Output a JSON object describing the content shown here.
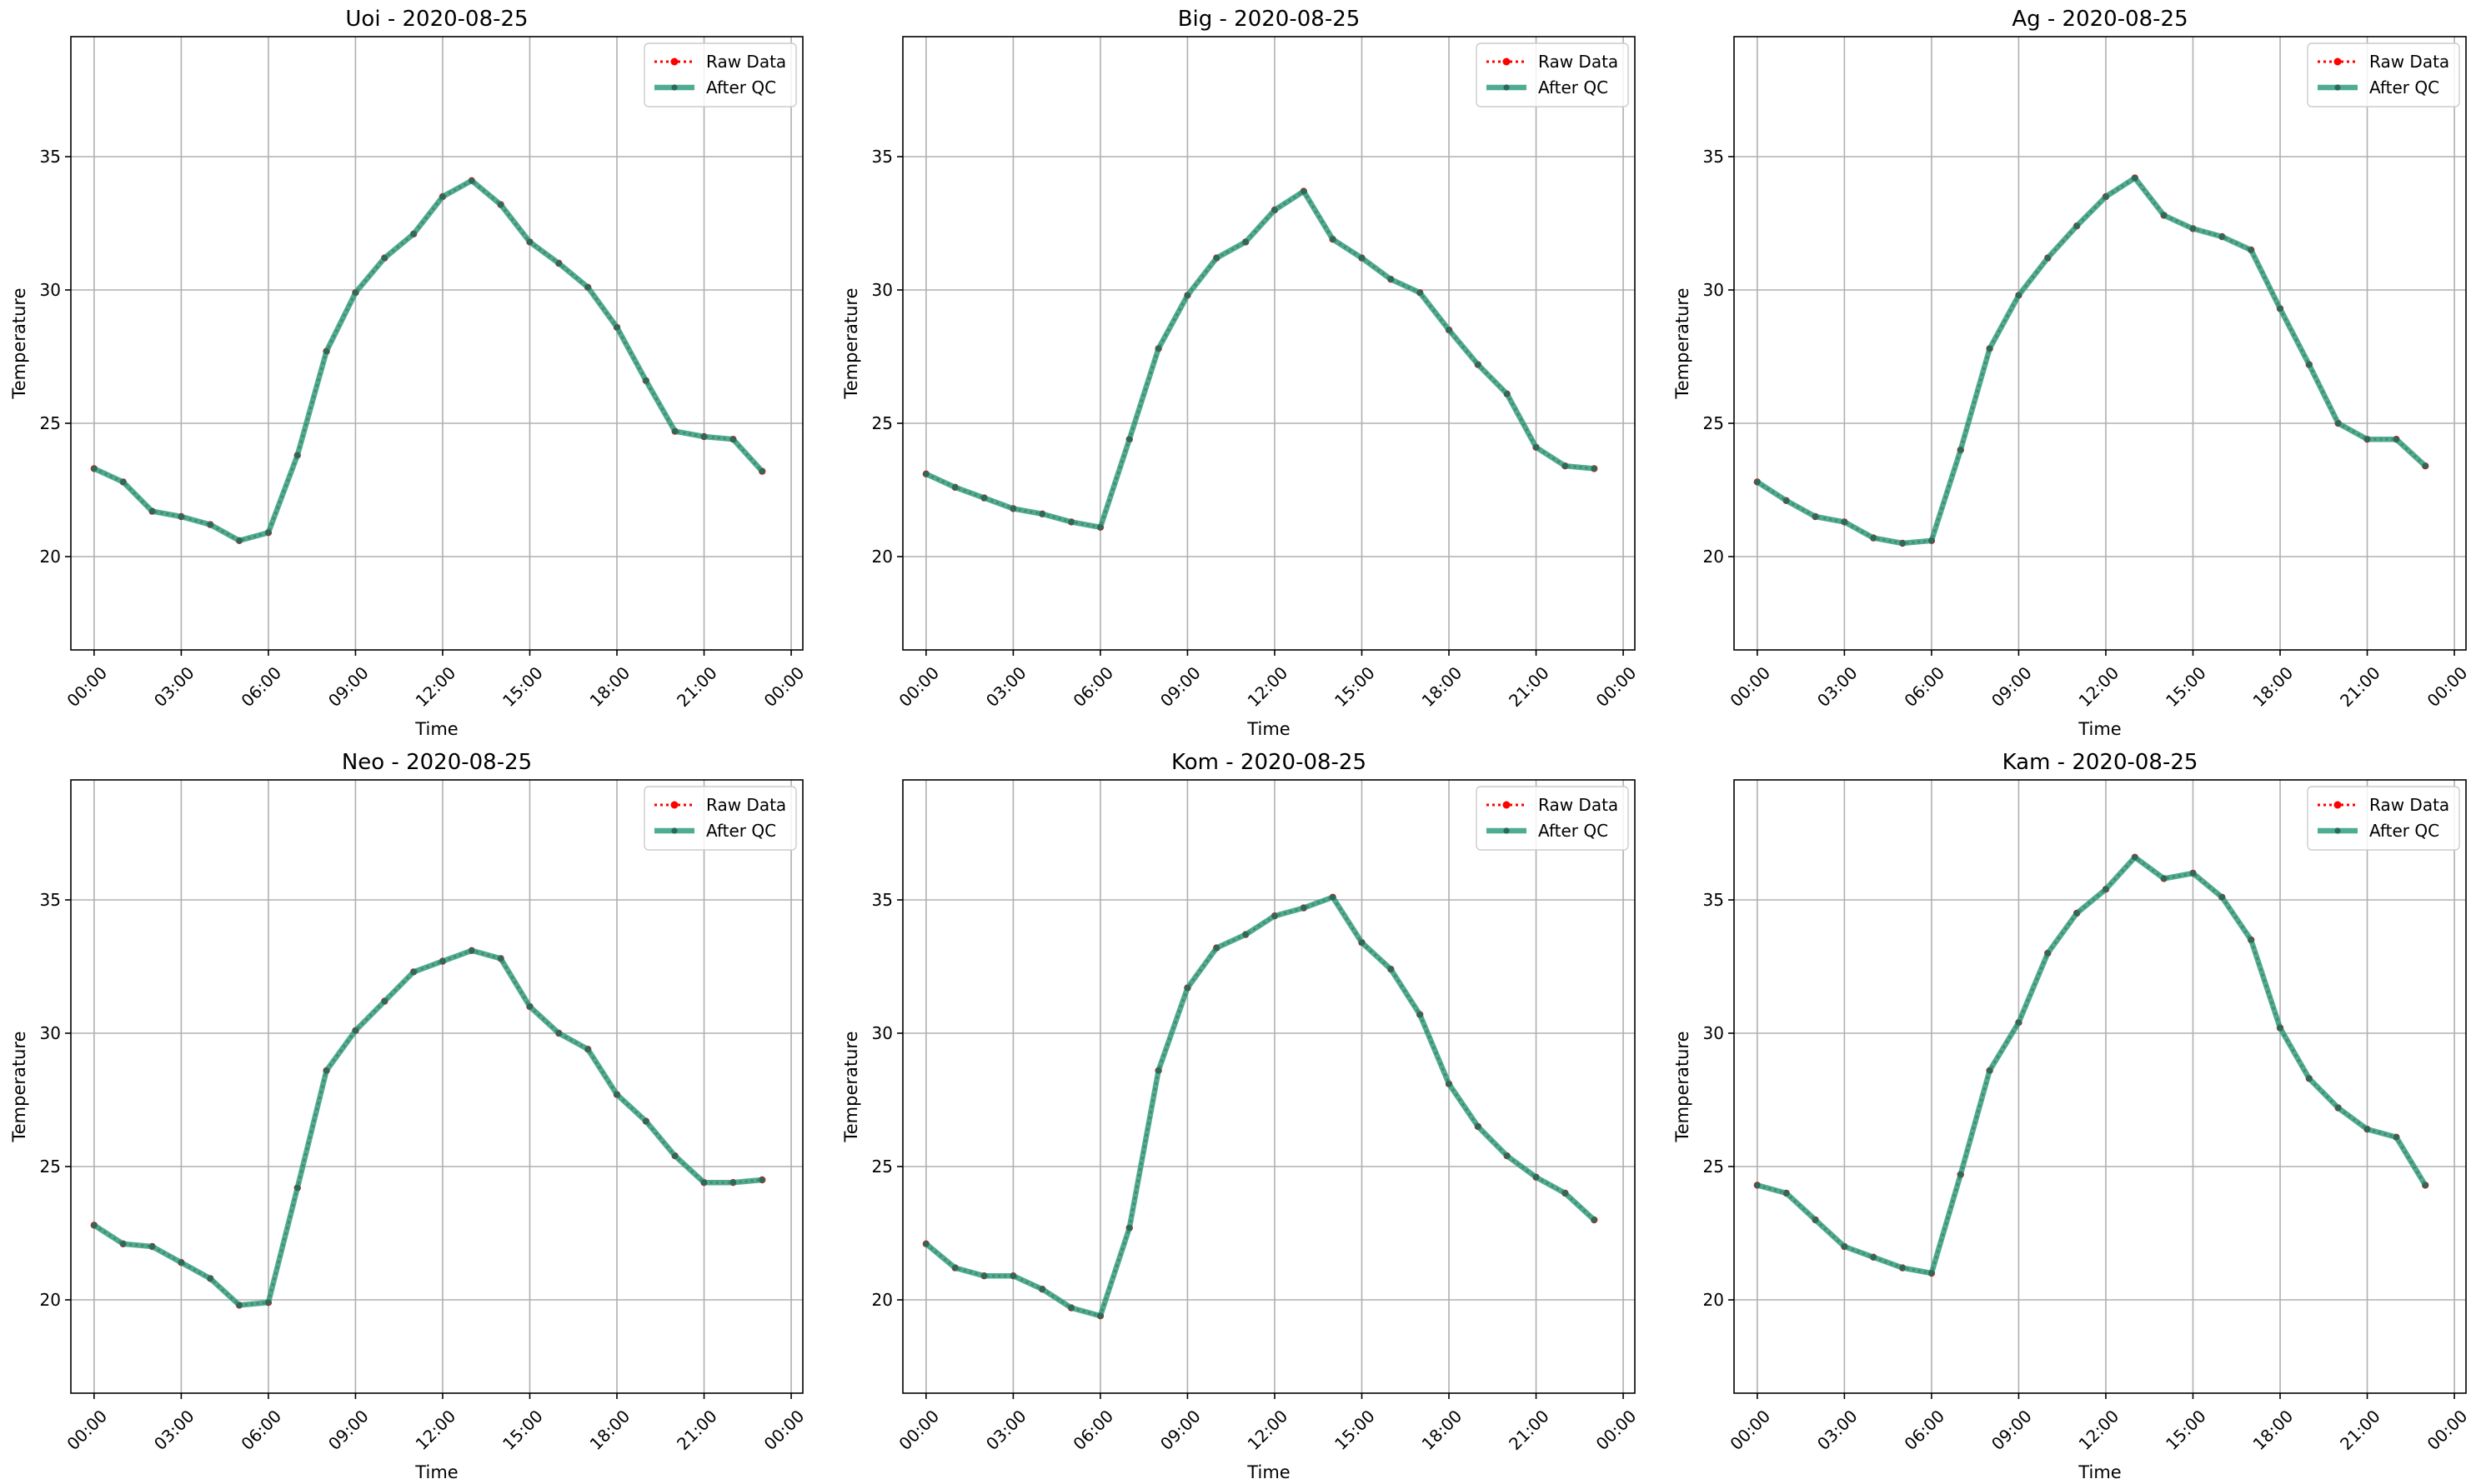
{
  "figure": {
    "rows": 2,
    "cols": 3,
    "colors": {
      "raw": "#ff0000",
      "qc": "#2e9e7e",
      "qc_marker": "#2a6a5a",
      "grid": "#b0b0b0",
      "axes": "#000000",
      "legend_border": "#cccccc"
    }
  },
  "chart_data": [
    {
      "type": "line",
      "title": "Uoi - 2020-08-25",
      "xlabel": "Time",
      "ylabel": "Temperature",
      "xlim": [
        -0.8,
        24.4
      ],
      "ylim": [
        16.5,
        39.5
      ],
      "xticks": [
        0,
        3,
        6,
        9,
        12,
        15,
        18,
        21,
        24
      ],
      "xtick_labels": [
        "00:00",
        "03:00",
        "06:00",
        "09:00",
        "12:00",
        "15:00",
        "18:00",
        "21:00",
        "00:00"
      ],
      "yticks": [
        20,
        25,
        30,
        35
      ],
      "ytick_labels": [
        "20",
        "25",
        "30",
        "35"
      ],
      "grid": true,
      "legend": "top-right",
      "x": [
        0,
        1,
        2,
        3,
        4,
        5,
        6,
        7,
        8,
        9,
        10,
        11,
        12,
        13,
        14,
        15,
        16,
        17,
        18,
        19,
        20,
        21,
        22,
        23
      ],
      "series": [
        {
          "name": "Raw Data",
          "style": "dotted-red",
          "values": [
            23.3,
            22.8,
            21.7,
            21.5,
            21.2,
            20.6,
            20.9,
            23.8,
            27.7,
            29.9,
            31.2,
            32.1,
            33.5,
            34.1,
            33.2,
            31.8,
            31.0,
            30.1,
            28.6,
            26.6,
            24.7,
            24.5,
            24.4,
            23.2
          ]
        },
        {
          "name": "After QC",
          "style": "solid-green",
          "values": [
            23.3,
            22.8,
            21.7,
            21.5,
            21.2,
            20.6,
            20.9,
            23.8,
            27.7,
            29.9,
            31.2,
            32.1,
            33.5,
            34.1,
            33.2,
            31.8,
            31.0,
            30.1,
            28.6,
            26.6,
            24.7,
            24.5,
            24.4,
            23.2
          ]
        }
      ]
    },
    {
      "type": "line",
      "title": "Big - 2020-08-25",
      "xlabel": "Time",
      "ylabel": "Temperature",
      "xlim": [
        -0.8,
        24.4
      ],
      "ylim": [
        16.5,
        39.5
      ],
      "xticks": [
        0,
        3,
        6,
        9,
        12,
        15,
        18,
        21,
        24
      ],
      "xtick_labels": [
        "00:00",
        "03:00",
        "06:00",
        "09:00",
        "12:00",
        "15:00",
        "18:00",
        "21:00",
        "00:00"
      ],
      "yticks": [
        20,
        25,
        30,
        35
      ],
      "ytick_labels": [
        "20",
        "25",
        "30",
        "35"
      ],
      "grid": true,
      "legend": "top-right",
      "x": [
        0,
        1,
        2,
        3,
        4,
        5,
        6,
        7,
        8,
        9,
        10,
        11,
        12,
        13,
        14,
        15,
        16,
        17,
        18,
        19,
        20,
        21,
        22,
        23
      ],
      "series": [
        {
          "name": "Raw Data",
          "style": "dotted-red",
          "values": [
            23.1,
            22.6,
            22.2,
            21.8,
            21.6,
            21.3,
            21.1,
            24.4,
            27.8,
            29.8,
            31.2,
            31.8,
            33.0,
            33.7,
            31.9,
            31.2,
            30.4,
            29.9,
            28.5,
            27.2,
            26.1,
            24.1,
            23.4,
            23.3
          ]
        },
        {
          "name": "After QC",
          "style": "solid-green",
          "values": [
            23.1,
            22.6,
            22.2,
            21.8,
            21.6,
            21.3,
            21.1,
            24.4,
            27.8,
            29.8,
            31.2,
            31.8,
            33.0,
            33.7,
            31.9,
            31.2,
            30.4,
            29.9,
            28.5,
            27.2,
            26.1,
            24.1,
            23.4,
            23.3
          ]
        }
      ]
    },
    {
      "type": "line",
      "title": "Ag - 2020-08-25",
      "xlabel": "Time",
      "ylabel": "Temperature",
      "xlim": [
        -0.8,
        24.4
      ],
      "ylim": [
        16.5,
        39.5
      ],
      "xticks": [
        0,
        3,
        6,
        9,
        12,
        15,
        18,
        21,
        24
      ],
      "xtick_labels": [
        "00:00",
        "03:00",
        "06:00",
        "09:00",
        "12:00",
        "15:00",
        "18:00",
        "21:00",
        "00:00"
      ],
      "yticks": [
        20,
        25,
        30,
        35
      ],
      "ytick_labels": [
        "20",
        "25",
        "30",
        "35"
      ],
      "grid": true,
      "legend": "top-right",
      "x": [
        0,
        1,
        2,
        3,
        4,
        5,
        6,
        7,
        8,
        9,
        10,
        11,
        12,
        13,
        14,
        15,
        16,
        17,
        18,
        19,
        20,
        21,
        22,
        23
      ],
      "series": [
        {
          "name": "Raw Data",
          "style": "dotted-red",
          "values": [
            22.8,
            22.1,
            21.5,
            21.3,
            20.7,
            20.5,
            20.6,
            24.0,
            27.8,
            29.8,
            31.2,
            32.4,
            33.5,
            34.2,
            32.8,
            32.3,
            32.0,
            31.5,
            29.3,
            27.2,
            25.0,
            24.4,
            24.4,
            23.4
          ]
        },
        {
          "name": "After QC",
          "style": "solid-green",
          "values": [
            22.8,
            22.1,
            21.5,
            21.3,
            20.7,
            20.5,
            20.6,
            24.0,
            27.8,
            29.8,
            31.2,
            32.4,
            33.5,
            34.2,
            32.8,
            32.3,
            32.0,
            31.5,
            29.3,
            27.2,
            25.0,
            24.4,
            24.4,
            23.4
          ]
        }
      ]
    },
    {
      "type": "line",
      "title": "Neo - 2020-08-25",
      "xlabel": "Time",
      "ylabel": "Temperature",
      "xlim": [
        -0.8,
        24.4
      ],
      "ylim": [
        16.5,
        39.5
      ],
      "xticks": [
        0,
        3,
        6,
        9,
        12,
        15,
        18,
        21,
        24
      ],
      "xtick_labels": [
        "00:00",
        "03:00",
        "06:00",
        "09:00",
        "12:00",
        "15:00",
        "18:00",
        "21:00",
        "00:00"
      ],
      "yticks": [
        20,
        25,
        30,
        35
      ],
      "ytick_labels": [
        "20",
        "25",
        "30",
        "35"
      ],
      "grid": true,
      "legend": "top-right",
      "x": [
        0,
        1,
        2,
        3,
        4,
        5,
        6,
        7,
        8,
        9,
        10,
        11,
        12,
        13,
        14,
        15,
        16,
        17,
        18,
        19,
        20,
        21,
        22,
        23
      ],
      "series": [
        {
          "name": "Raw Data",
          "style": "dotted-red",
          "values": [
            22.8,
            22.1,
            22.0,
            21.4,
            20.8,
            19.8,
            19.9,
            24.2,
            28.6,
            30.1,
            31.2,
            32.3,
            32.7,
            33.1,
            32.8,
            31.0,
            30.0,
            29.4,
            27.7,
            26.7,
            25.4,
            24.4,
            24.4,
            24.5
          ]
        },
        {
          "name": "After QC",
          "style": "solid-green",
          "values": [
            22.8,
            22.1,
            22.0,
            21.4,
            20.8,
            19.8,
            19.9,
            24.2,
            28.6,
            30.1,
            31.2,
            32.3,
            32.7,
            33.1,
            32.8,
            31.0,
            30.0,
            29.4,
            27.7,
            26.7,
            25.4,
            24.4,
            24.4,
            24.5
          ]
        }
      ]
    },
    {
      "type": "line",
      "title": "Kom - 2020-08-25",
      "xlabel": "Time",
      "ylabel": "Temperature",
      "xlim": [
        -0.8,
        24.4
      ],
      "ylim": [
        16.5,
        39.5
      ],
      "xticks": [
        0,
        3,
        6,
        9,
        12,
        15,
        18,
        21,
        24
      ],
      "xtick_labels": [
        "00:00",
        "03:00",
        "06:00",
        "09:00",
        "12:00",
        "15:00",
        "18:00",
        "21:00",
        "00:00"
      ],
      "yticks": [
        20,
        25,
        30,
        35
      ],
      "ytick_labels": [
        "20",
        "25",
        "30",
        "35"
      ],
      "grid": true,
      "legend": "top-right",
      "x": [
        0,
        1,
        2,
        3,
        4,
        5,
        6,
        7,
        8,
        9,
        10,
        11,
        12,
        13,
        14,
        15,
        16,
        17,
        18,
        19,
        20,
        21,
        22,
        23
      ],
      "series": [
        {
          "name": "Raw Data",
          "style": "dotted-red",
          "values": [
            22.1,
            21.2,
            20.9,
            20.9,
            20.4,
            19.7,
            19.4,
            22.7,
            28.6,
            31.7,
            33.2,
            33.7,
            34.4,
            34.7,
            35.1,
            33.4,
            32.4,
            30.7,
            28.1,
            26.5,
            25.4,
            24.6,
            24.0,
            23.0
          ]
        },
        {
          "name": "After QC",
          "style": "solid-green",
          "values": [
            22.1,
            21.2,
            20.9,
            20.9,
            20.4,
            19.7,
            19.4,
            22.7,
            28.6,
            31.7,
            33.2,
            33.7,
            34.4,
            34.7,
            35.1,
            33.4,
            32.4,
            30.7,
            28.1,
            26.5,
            25.4,
            24.6,
            24.0,
            23.0
          ]
        }
      ]
    },
    {
      "type": "line",
      "title": "Kam - 2020-08-25",
      "xlabel": "Time",
      "ylabel": "Temperature",
      "xlim": [
        -0.8,
        24.4
      ],
      "ylim": [
        16.5,
        39.5
      ],
      "xticks": [
        0,
        3,
        6,
        9,
        12,
        15,
        18,
        21,
        24
      ],
      "xtick_labels": [
        "00:00",
        "03:00",
        "06:00",
        "09:00",
        "12:00",
        "15:00",
        "18:00",
        "21:00",
        "00:00"
      ],
      "yticks": [
        20,
        25,
        30,
        35
      ],
      "ytick_labels": [
        "20",
        "25",
        "30",
        "35"
      ],
      "grid": true,
      "legend": "top-right",
      "x": [
        0,
        1,
        2,
        3,
        4,
        5,
        6,
        7,
        8,
        9,
        10,
        11,
        12,
        13,
        14,
        15,
        16,
        17,
        18,
        19,
        20,
        21,
        22,
        23
      ],
      "series": [
        {
          "name": "Raw Data",
          "style": "dotted-red",
          "values": [
            24.3,
            24.0,
            23.0,
            22.0,
            21.6,
            21.2,
            21.0,
            24.7,
            28.6,
            30.4,
            33.0,
            34.5,
            35.4,
            36.6,
            35.8,
            36.0,
            35.1,
            33.5,
            30.2,
            28.3,
            27.2,
            26.4,
            26.1,
            24.3
          ]
        },
        {
          "name": "After QC",
          "style": "solid-green",
          "values": [
            24.3,
            24.0,
            23.0,
            22.0,
            21.6,
            21.2,
            21.0,
            24.7,
            28.6,
            30.4,
            33.0,
            34.5,
            35.4,
            36.6,
            35.8,
            36.0,
            35.1,
            33.5,
            30.2,
            28.3,
            27.2,
            26.4,
            26.1,
            24.3
          ]
        }
      ]
    }
  ]
}
